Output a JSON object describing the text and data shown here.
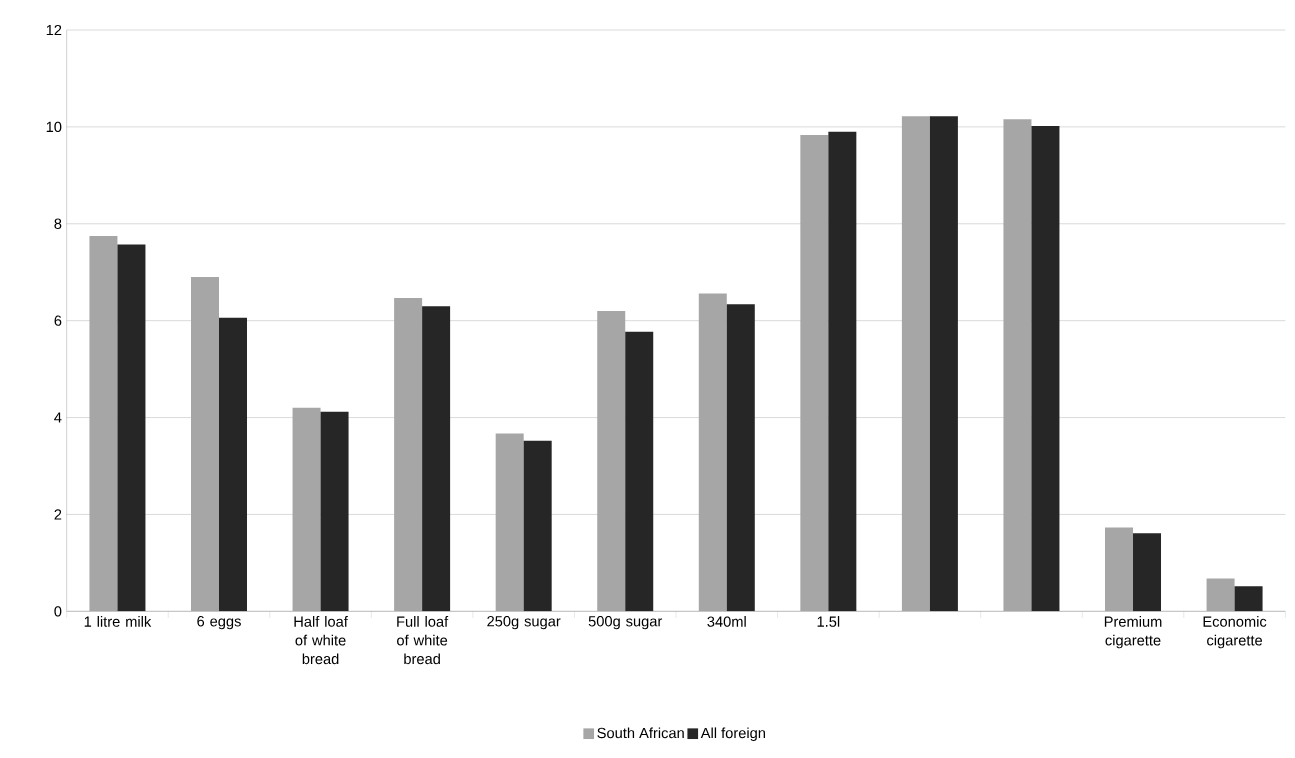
{
  "chart_data": {
    "type": "bar",
    "categories": [
      "1 litre milk",
      "6 eggs",
      "Half loaf of white bread",
      "Full loaf of white bread",
      "250g sugar",
      "500g sugar",
      "340ml",
      "1.5l",
      null,
      null,
      "Premium cigarette",
      "Economic cigarette"
    ],
    "series": [
      {
        "name": "South African",
        "color": "#a6a6a6",
        "values": [
          7.75,
          6.9,
          4.2,
          6.47,
          3.67,
          6.2,
          6.56,
          9.83,
          10.22,
          10.16,
          1.73,
          0.68
        ]
      },
      {
        "name": "All foreign",
        "color": "#262626",
        "values": [
          7.57,
          6.06,
          4.12,
          6.3,
          3.52,
          5.77,
          6.34,
          9.9,
          10.22,
          10.02,
          1.61,
          0.52
        ]
      }
    ],
    "ylim": [
      0,
      12
    ],
    "yticks": [
      0,
      2,
      4,
      6,
      8,
      10,
      12
    ],
    "grid": "y",
    "legend": "bottom"
  }
}
